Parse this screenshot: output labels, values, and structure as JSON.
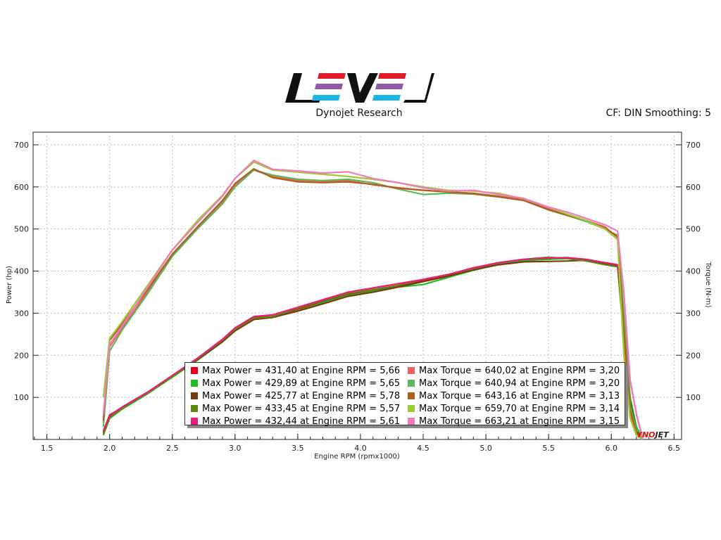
{
  "header": {
    "brand": "Dynojet Research",
    "logo_text": "LEVEL",
    "info": "CF: DIN Smoothing: 5",
    "watermark": "DYNOJET"
  },
  "chart_data": {
    "type": "line",
    "xlabel": "Engine RPM (rpmx1000)",
    "ylabel_left": "Power (hp)",
    "ylabel_right": "Torque (N-m)",
    "xlim": [
      1.39,
      6.56
    ],
    "ylim": [
      0,
      730
    ],
    "xticks": [
      1.5,
      2.0,
      2.5,
      3.0,
      3.5,
      4.0,
      4.5,
      5.0,
      5.5,
      6.0,
      6.5
    ],
    "xtick_labels": [
      "1.5",
      "2.0",
      "2.5",
      "3.0",
      "3.5",
      "4.0",
      "4.5",
      "5.0",
      "5.5",
      "6.0",
      "6.5"
    ],
    "yticks": [
      100,
      200,
      300,
      400,
      500,
      600,
      700
    ],
    "ytick_labels": [
      "100",
      "200",
      "300",
      "400",
      "500",
      "600",
      "700"
    ],
    "grid": true,
    "legend_placement": "bottom-center",
    "x": [
      1.95,
      2.0,
      2.1,
      2.3,
      2.5,
      2.7,
      2.9,
      3.0,
      3.15,
      3.3,
      3.5,
      3.7,
      3.9,
      4.1,
      4.3,
      4.5,
      4.7,
      4.9,
      5.1,
      5.3,
      5.5,
      5.65,
      5.8,
      5.95,
      6.05,
      6.1,
      6.15,
      6.2,
      6.25
    ],
    "series": [
      {
        "name": "Max Power = 431,40 at Engine RPM = 5,66",
        "color": "#e8001a",
        "values": [
          15,
          55,
          75,
          110,
          150,
          190,
          235,
          262,
          290,
          292,
          310,
          328,
          345,
          355,
          365,
          378,
          390,
          405,
          418,
          426,
          428,
          431,
          425,
          420,
          415,
          250,
          80,
          20,
          0
        ]
      },
      {
        "name": "Max Power = 429,89 at Engine RPM = 5,65",
        "color": "#1fbf1f",
        "values": [
          10,
          50,
          72,
          108,
          148,
          188,
          232,
          258,
          286,
          290,
          306,
          325,
          342,
          352,
          362,
          368,
          385,
          402,
          416,
          425,
          428,
          430,
          424,
          418,
          412,
          280,
          100,
          30,
          0
        ]
      },
      {
        "name": "Max Power = 425,77 at Engine RPM = 5,78",
        "color": "#7a3a10",
        "values": [
          20,
          58,
          76,
          110,
          150,
          190,
          232,
          258,
          285,
          290,
          305,
          322,
          340,
          350,
          362,
          375,
          388,
          403,
          415,
          422,
          423,
          424,
          426,
          418,
          412,
          260,
          90,
          20,
          0
        ]
      },
      {
        "name": "Max Power = 433,45 at Engine RPM = 5,57",
        "color": "#5a8a10",
        "values": [
          12,
          52,
          74,
          109,
          150,
          192,
          236,
          262,
          288,
          292,
          312,
          330,
          347,
          356,
          366,
          380,
          392,
          406,
          420,
          428,
          433,
          430,
          424,
          415,
          410,
          240,
          70,
          15,
          0
        ]
      },
      {
        "name": "Max Power = 432,44 at Engine RPM = 5,61",
        "color": "#f0197a",
        "values": [
          18,
          56,
          77,
          112,
          152,
          193,
          238,
          265,
          292,
          296,
          314,
          332,
          350,
          360,
          370,
          380,
          392,
          408,
          420,
          428,
          431,
          432,
          428,
          420,
          415,
          300,
          140,
          60,
          0
        ]
      },
      {
        "name": "Max Torque = 640,02 at Engine RPM = 3,20",
        "color": "#f06060",
        "values": [
          40,
          220,
          265,
          350,
          440,
          505,
          565,
          605,
          640,
          625,
          615,
          612,
          615,
          605,
          598,
          592,
          588,
          585,
          578,
          570,
          548,
          535,
          520,
          505,
          480,
          250,
          60,
          10,
          0
        ]
      },
      {
        "name": "Max Torque = 640,94 at Engine RPM = 3,20",
        "color": "#5cb85c",
        "values": [
          30,
          210,
          260,
          345,
          435,
          500,
          560,
          600,
          640,
          628,
          618,
          615,
          618,
          610,
          595,
          582,
          585,
          583,
          576,
          568,
          545,
          532,
          518,
          500,
          485,
          300,
          80,
          20,
          0
        ]
      },
      {
        "name": "Max Torque = 643,16 at Engine RPM = 3,13",
        "color": "#b0601e",
        "values": [
          45,
          235,
          275,
          355,
          440,
          505,
          568,
          608,
          643,
          622,
          612,
          610,
          612,
          606,
          597,
          592,
          588,
          584,
          577,
          568,
          546,
          532,
          520,
          502,
          482,
          260,
          70,
          15,
          0
        ]
      },
      {
        "name": "Max Torque = 659,70 at Engine RPM = 3,14",
        "color": "#9acd32",
        "values": [
          100,
          240,
          280,
          365,
          450,
          520,
          580,
          620,
          659,
          640,
          635,
          630,
          625,
          618,
          610,
          600,
          592,
          590,
          585,
          572,
          552,
          535,
          520,
          500,
          475,
          200,
          50,
          10,
          0
        ]
      },
      {
        "name": "Max Torque = 663,21 at Engine RPM = 3,15",
        "color": "#f27bbd",
        "values": [
          60,
          225,
          270,
          360,
          450,
          515,
          578,
          620,
          663,
          642,
          638,
          633,
          636,
          620,
          610,
          598,
          590,
          592,
          582,
          573,
          552,
          540,
          525,
          510,
          495,
          350,
          140,
          60,
          0
        ]
      }
    ]
  }
}
